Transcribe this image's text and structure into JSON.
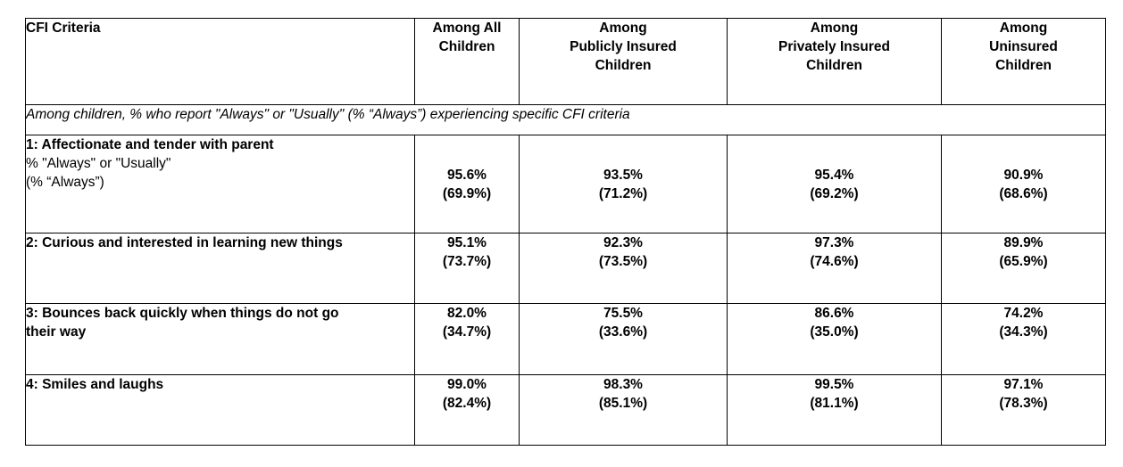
{
  "table": {
    "header": {
      "criteria": "CFI Criteria",
      "columns": [
        [
          "Among All",
          "Children"
        ],
        [
          "Among",
          "Publicly Insured",
          "Children"
        ],
        [
          "Among",
          "Privately Insured",
          "Children"
        ],
        [
          "Among",
          "Uninsured",
          "Children"
        ]
      ]
    },
    "subheader": "Among children, % who report \"Always\" or \"Usually\" (% “Always”) experiencing specific CFI criteria",
    "rows": [
      {
        "label": "1: Affectionate and tender with parent",
        "note_lines": [
          "% \"Always\" or \"Usually\"",
          "(% “Always”)"
        ],
        "values": [
          {
            "usual": "95.6%",
            "always": "(69.9%)"
          },
          {
            "usual": "93.5%",
            "always": "(71.2%)"
          },
          {
            "usual": "95.4%",
            "always": "(69.2%)"
          },
          {
            "usual": "90.9%",
            "always": "(68.6%)"
          }
        ]
      },
      {
        "label": "2: Curious and interested in learning new things",
        "values": [
          {
            "usual": "95.1%",
            "always": "(73.7%)"
          },
          {
            "usual": "92.3%",
            "always": "(73.5%)"
          },
          {
            "usual": "97.3%",
            "always": "(74.6%)"
          },
          {
            "usual": "89.9%",
            "always": "(65.9%)"
          }
        ]
      },
      {
        "label_lines": [
          "3: Bounces back quickly when things do not go",
          "their way"
        ],
        "values": [
          {
            "usual": "82.0%",
            "always": "(34.7%)"
          },
          {
            "usual": "75.5%",
            "always": "(33.6%)"
          },
          {
            "usual": "86.6%",
            "always": "(35.0%)"
          },
          {
            "usual": "74.2%",
            "always": "(34.3%)"
          }
        ]
      },
      {
        "label": "4: Smiles and laughs",
        "values": [
          {
            "usual": "99.0%",
            "always": "(82.4%)"
          },
          {
            "usual": "98.3%",
            "always": "(85.1%)"
          },
          {
            "usual": "99.5%",
            "always": "(81.1%)"
          },
          {
            "usual": "97.1%",
            "always": "(78.3%)"
          }
        ]
      }
    ]
  }
}
